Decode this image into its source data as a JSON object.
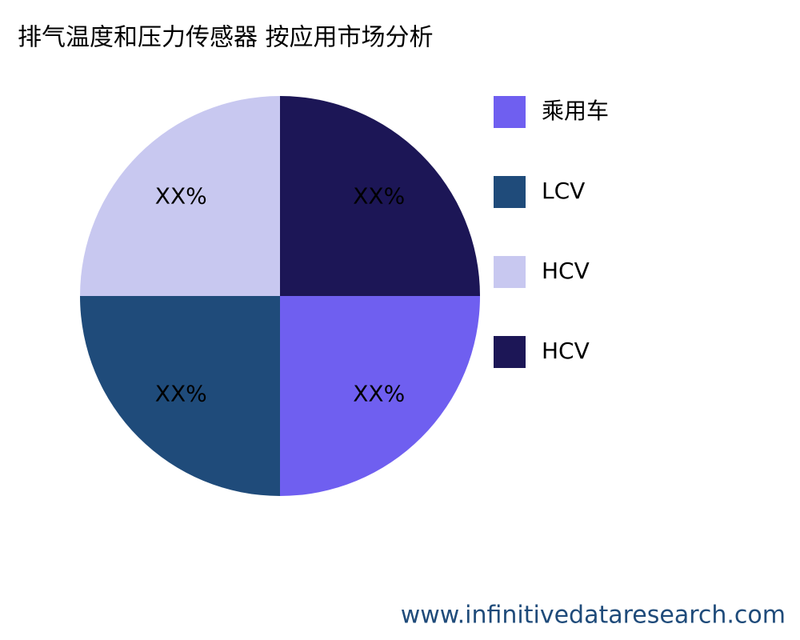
{
  "chart_data": {
    "type": "pie",
    "title": "排气温度和压力传感器 按应用市场分析",
    "categories": [
      "乘用车",
      "LCV",
      "HCV",
      "HCV"
    ],
    "values": [
      25,
      25,
      25,
      25
    ],
    "value_labels": [
      "XX%",
      "XX%",
      "XX%",
      "XX%"
    ],
    "colors": [
      "#6f5ff0",
      "#1f4b7a",
      "#c8c8f0",
      "#1c1656"
    ],
    "legend": "right",
    "watermark": "www.infinitivedataresearch.com"
  }
}
